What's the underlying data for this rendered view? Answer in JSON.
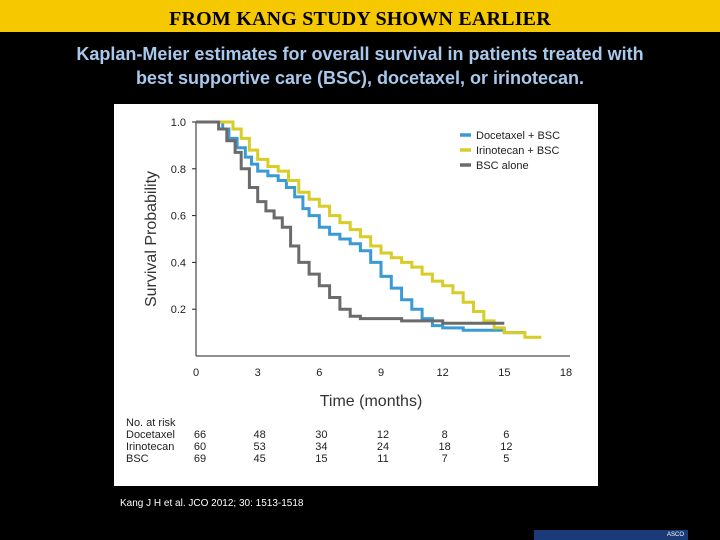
{
  "banner": {
    "title": "FROM KANG STUDY SHOWN EARLIER"
  },
  "subtitle": {
    "line1": "Kaplan-Meier estimates for overall survival in patients treated with",
    "line2": "best supportive care (BSC), docetaxel, or irinotecan."
  },
  "citation": "Kang J H et al. JCO 2012; 30: 1513-1518",
  "logo": {
    "text": "ASCO"
  },
  "colors": {
    "docetaxel": "#3a9ad6",
    "irinotecan": "#d8cc26",
    "bsc": "#6b6b6b",
    "axis": "#222222"
  },
  "chart_data": {
    "type": "line",
    "title": "",
    "xlabel": "Time (months)",
    "ylabel": "Survival Probability",
    "xlim": [
      0,
      18
    ],
    "ylim": [
      0,
      1.0
    ],
    "xticks": [
      "0",
      "3",
      "6",
      "9",
      "12",
      "15",
      "18"
    ],
    "yticks": [
      "1.0",
      "0.8",
      "0.6",
      "0.4",
      "0.2"
    ],
    "legend_position": "top-right",
    "series": [
      {
        "name": "Docetaxel + BSC",
        "color": "#3a9ad6",
        "points": [
          [
            0,
            1.0
          ],
          [
            1.0,
            1.0
          ],
          [
            1.3,
            0.97
          ],
          [
            1.6,
            0.93
          ],
          [
            2.0,
            0.89
          ],
          [
            2.4,
            0.85
          ],
          [
            2.7,
            0.82
          ],
          [
            3.0,
            0.79
          ],
          [
            3.5,
            0.77
          ],
          [
            4.0,
            0.75
          ],
          [
            4.4,
            0.72
          ],
          [
            4.8,
            0.68
          ],
          [
            5.2,
            0.63
          ],
          [
            5.5,
            0.6
          ],
          [
            6.0,
            0.55
          ],
          [
            6.5,
            0.52
          ],
          [
            7.0,
            0.5
          ],
          [
            7.5,
            0.48
          ],
          [
            8.0,
            0.45
          ],
          [
            8.5,
            0.4
          ],
          [
            9.0,
            0.34
          ],
          [
            9.5,
            0.29
          ],
          [
            10.0,
            0.24
          ],
          [
            10.5,
            0.2
          ],
          [
            11.0,
            0.16
          ],
          [
            11.5,
            0.13
          ],
          [
            12.0,
            0.12
          ],
          [
            13.0,
            0.11
          ],
          [
            14.0,
            0.11
          ],
          [
            15.0,
            0.1
          ],
          [
            16.0,
            0.1
          ]
        ]
      },
      {
        "name": "Irinotecan + BSC",
        "color": "#d8cc26",
        "points": [
          [
            0,
            1.0
          ],
          [
            1.5,
            1.0
          ],
          [
            1.8,
            0.97
          ],
          [
            2.2,
            0.93
          ],
          [
            2.6,
            0.88
          ],
          [
            3.0,
            0.84
          ],
          [
            3.5,
            0.81
          ],
          [
            4.0,
            0.79
          ],
          [
            4.5,
            0.75
          ],
          [
            5.0,
            0.7
          ],
          [
            5.5,
            0.67
          ],
          [
            6.0,
            0.64
          ],
          [
            6.5,
            0.6
          ],
          [
            7.0,
            0.57
          ],
          [
            7.5,
            0.54
          ],
          [
            8.0,
            0.51
          ],
          [
            8.5,
            0.47
          ],
          [
            9.0,
            0.44
          ],
          [
            9.5,
            0.42
          ],
          [
            10.0,
            0.4
          ],
          [
            10.5,
            0.38
          ],
          [
            11.0,
            0.35
          ],
          [
            11.5,
            0.32
          ],
          [
            12.0,
            0.3
          ],
          [
            12.5,
            0.27
          ],
          [
            13.0,
            0.23
          ],
          [
            13.5,
            0.19
          ],
          [
            14.0,
            0.15
          ],
          [
            14.5,
            0.12
          ],
          [
            15.0,
            0.1
          ],
          [
            16.0,
            0.08
          ],
          [
            16.8,
            0.08
          ]
        ]
      },
      {
        "name": "BSC alone",
        "color": "#6b6b6b",
        "points": [
          [
            0,
            1.0
          ],
          [
            0.8,
            1.0
          ],
          [
            1.1,
            0.97
          ],
          [
            1.5,
            0.92
          ],
          [
            1.9,
            0.87
          ],
          [
            2.2,
            0.8
          ],
          [
            2.6,
            0.72
          ],
          [
            3.0,
            0.66
          ],
          [
            3.4,
            0.62
          ],
          [
            3.8,
            0.59
          ],
          [
            4.2,
            0.55
          ],
          [
            4.6,
            0.47
          ],
          [
            5.0,
            0.4
          ],
          [
            5.5,
            0.35
          ],
          [
            6.0,
            0.3
          ],
          [
            6.5,
            0.25
          ],
          [
            7.0,
            0.2
          ],
          [
            7.5,
            0.17
          ],
          [
            8.0,
            0.16
          ],
          [
            9.0,
            0.16
          ],
          [
            10.0,
            0.15
          ],
          [
            11.0,
            0.15
          ],
          [
            12.0,
            0.14
          ],
          [
            13.0,
            0.14
          ],
          [
            14.0,
            0.14
          ],
          [
            15.0,
            0.14
          ]
        ]
      }
    ],
    "risk_table": {
      "title": "No. at risk",
      "times": [
        0,
        3,
        6,
        9,
        12,
        15
      ],
      "rows": [
        {
          "label": "Docetaxel",
          "values": [
            "66",
            "48",
            "30",
            "12",
            "8",
            "6"
          ]
        },
        {
          "label": "Irinotecan",
          "values": [
            "60",
            "53",
            "34",
            "24",
            "18",
            "12"
          ]
        },
        {
          "label": "BSC",
          "values": [
            "69",
            "45",
            "15",
            "11",
            "7",
            "5"
          ]
        }
      ]
    }
  }
}
